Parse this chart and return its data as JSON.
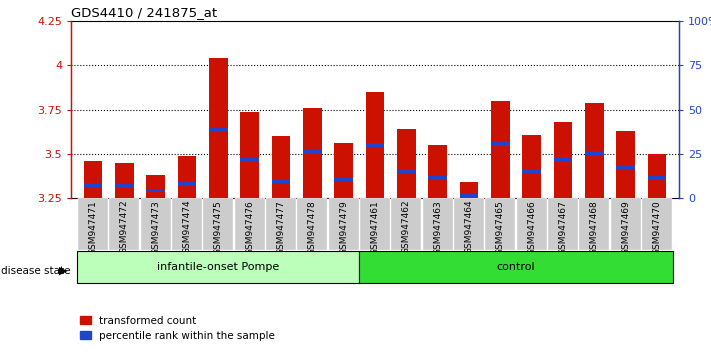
{
  "title": "GDS4410 / 241875_at",
  "samples": [
    "GSM947471",
    "GSM947472",
    "GSM947473",
    "GSM947474",
    "GSM947475",
    "GSM947476",
    "GSM947477",
    "GSM947478",
    "GSM947479",
    "GSM947461",
    "GSM947462",
    "GSM947463",
    "GSM947464",
    "GSM947465",
    "GSM947466",
    "GSM947467",
    "GSM947468",
    "GSM947469",
    "GSM947470"
  ],
  "red_values": [
    3.46,
    3.45,
    3.38,
    3.49,
    4.04,
    3.74,
    3.6,
    3.76,
    3.56,
    3.85,
    3.64,
    3.55,
    3.34,
    3.8,
    3.61,
    3.68,
    3.79,
    3.63,
    3.5
  ],
  "blue_bottom": [
    3.315,
    3.31,
    3.285,
    3.32,
    3.625,
    3.455,
    3.335,
    3.5,
    3.345,
    3.54,
    3.395,
    3.355,
    3.255,
    3.545,
    3.395,
    3.455,
    3.495,
    3.415,
    3.355
  ],
  "blue_height": [
    0.022,
    0.022,
    0.018,
    0.022,
    0.022,
    0.022,
    0.022,
    0.022,
    0.022,
    0.022,
    0.022,
    0.022,
    0.018,
    0.022,
    0.022,
    0.022,
    0.022,
    0.022,
    0.022
  ],
  "ylim_left": [
    3.25,
    4.25
  ],
  "ylim_right": [
    0,
    100
  ],
  "yticks_left": [
    3.25,
    3.5,
    3.75,
    4.0,
    4.25
  ],
  "yticks_right": [
    0,
    25,
    50,
    75,
    100
  ],
  "ytick_labels_left": [
    "3.25",
    "3.5",
    "3.75",
    "4",
    "4.25"
  ],
  "ytick_labels_right": [
    "0",
    "25",
    "50",
    "75",
    "100%"
  ],
  "group1_label": "infantile-onset Pompe",
  "group2_label": "control",
  "group1_count": 9,
  "bar_color": "#CC1100",
  "blue_color": "#2244CC",
  "group1_bg": "#BBFFBB",
  "group2_bg": "#33DD33",
  "tick_bg": "#CCCCCC",
  "legend_red": "transformed count",
  "legend_blue": "percentile rank within the sample",
  "disease_state_label": "disease state",
  "bar_width": 0.6
}
